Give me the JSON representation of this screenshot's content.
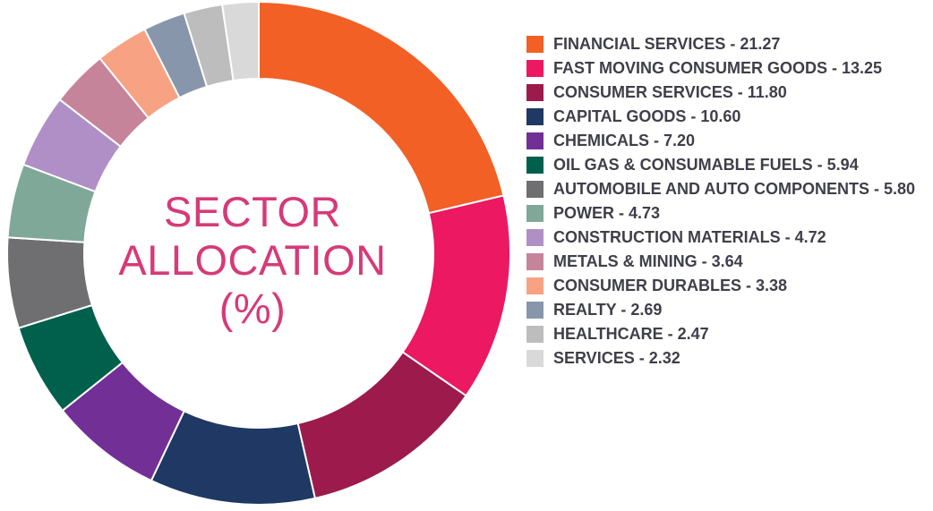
{
  "center_title": {
    "line1": "SECTOR",
    "line2": "ALLOCATION",
    "line3": "(%)"
  },
  "chart_data": {
    "type": "pie",
    "donut": true,
    "title": "SECTOR ALLOCATION (%)",
    "legend_position": "right",
    "slices": [
      {
        "label": "FINANCIAL SERVICES - 21.27",
        "name": "FINANCIAL SERVICES",
        "value": 21.27,
        "color": "#f26026"
      },
      {
        "label": "FAST MOVING CONSUMER GOODS - 13.25",
        "name": "FAST MOVING CONSUMER GOODS",
        "value": 13.25,
        "color": "#ec1861"
      },
      {
        "label": "CONSUMER SERVICES - 11.80",
        "name": "CONSUMER SERVICES",
        "value": 11.8,
        "color": "#9c1b4c"
      },
      {
        "label": "CAPITAL GOODS - 10.60",
        "name": "CAPITAL GOODS",
        "value": 10.6,
        "color": "#1f3864"
      },
      {
        "label": "CHEMICALS - 7.20",
        "name": "CHEMICALS",
        "value": 7.2,
        "color": "#722f96"
      },
      {
        "label": "OIL GAS & CONSUMABLE FUELS - 5.94",
        "name": "OIL GAS & CONSUMABLE FUELS",
        "value": 5.94,
        "color": "#00604b"
      },
      {
        "label": "AUTOMOBILE AND AUTO COMPONENTS - 5.80",
        "name": "AUTOMOBILE AND AUTO COMPONENTS",
        "value": 5.8,
        "color": "#6f6f72"
      },
      {
        "label": "POWER - 4.73",
        "name": "POWER",
        "value": 4.73,
        "color": "#7fa898"
      },
      {
        "label": "CONSTRUCTION MATERIALS - 4.72",
        "name": "CONSTRUCTION MATERIALS",
        "value": 4.72,
        "color": "#b08fc7"
      },
      {
        "label": "METALS & MINING - 3.64",
        "name": "METALS & MINING",
        "value": 3.64,
        "color": "#c6849a"
      },
      {
        "label": "CONSUMER DURABLES - 3.38",
        "name": "CONSUMER DURABLES",
        "value": 3.38,
        "color": "#f7a283"
      },
      {
        "label": "REALTY - 2.69",
        "name": "REALTY",
        "value": 2.69,
        "color": "#8896ab"
      },
      {
        "label": "HEALTHCARE - 2.47",
        "name": "HEALTHCARE",
        "value": 2.47,
        "color": "#bdbdbd"
      },
      {
        "label": "SERVICES - 2.32",
        "name": "SERVICES",
        "value": 2.32,
        "color": "#d9d9d9"
      }
    ]
  }
}
